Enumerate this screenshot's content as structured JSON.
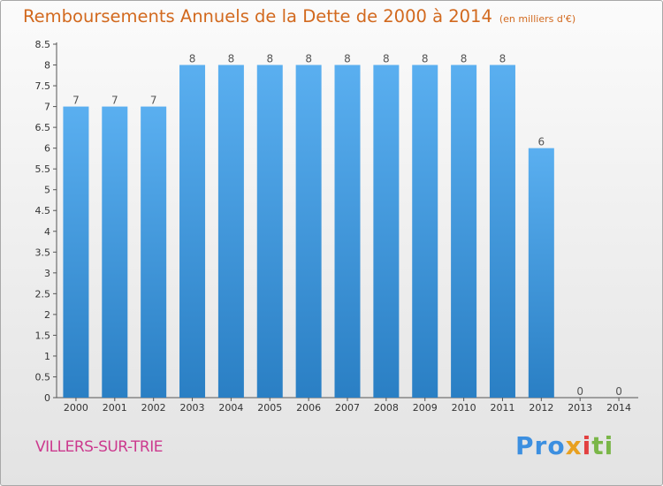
{
  "header": {
    "title": "Remboursements Annuels de la Dette de 2000 à 2014",
    "subtitle": "(en milliers d'€)"
  },
  "footer": {
    "commune": "VILLERS-SUR-TRIE",
    "logo_parts": [
      "Pro",
      "x",
      "i",
      "ti"
    ]
  },
  "colors": {
    "bar_light": "#5aaff0",
    "bar_dark": "#2a7fc4",
    "title": "#d2691e",
    "commune": "#cc3a8e"
  },
  "chart_data": {
    "type": "bar",
    "title": "Remboursements Annuels de la Dette de 2000 à 2014",
    "subtitle": "(en milliers d'€)",
    "xlabel": "",
    "ylabel": "",
    "categories": [
      "2000",
      "2001",
      "2002",
      "2003",
      "2004",
      "2005",
      "2006",
      "2007",
      "2008",
      "2009",
      "2010",
      "2011",
      "2012",
      "2013",
      "2014"
    ],
    "values": [
      7,
      7,
      7,
      8,
      8,
      8,
      8,
      8,
      8,
      8,
      8,
      8,
      6,
      0,
      0
    ],
    "data_labels": [
      "7",
      "7",
      "7",
      "8",
      "8",
      "8",
      "8",
      "8",
      "8",
      "8",
      "8",
      "8",
      "6",
      "0",
      "0"
    ],
    "ylim": [
      0,
      8.5
    ],
    "yticks": [
      "0",
      "0.5",
      "1",
      "1.5",
      "2",
      "2.5",
      "3",
      "3.5",
      "4",
      "4.5",
      "5",
      "5.5",
      "6",
      "6.5",
      "7",
      "7.5",
      "8",
      "8.5"
    ],
    "grid": false,
    "legend": "none"
  }
}
